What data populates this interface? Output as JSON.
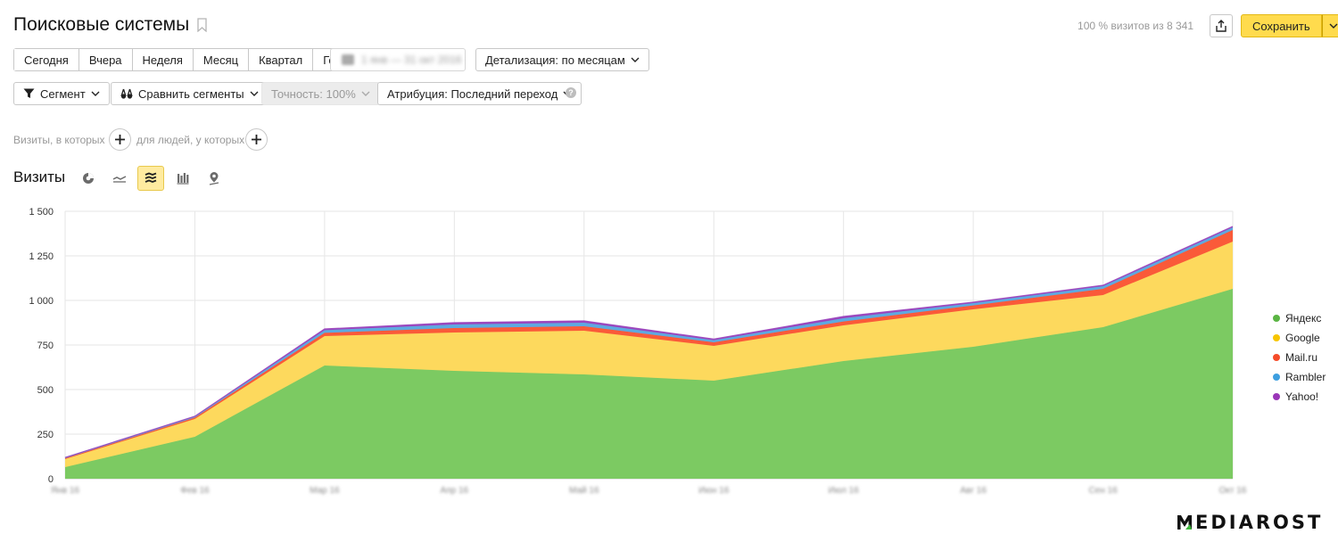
{
  "header": {
    "title": "Поисковые системы",
    "visits_info": "100 % визитов из 8 341",
    "save_label": "Сохранить"
  },
  "periods": [
    "Сегодня",
    "Вчера",
    "Неделя",
    "Месяц",
    "Квартал",
    "Год"
  ],
  "date_range": "1 янв — 31 окт 2016",
  "detail_label": "Детализация: по месяцам",
  "segment_label": "Сегмент",
  "compare_label": "Сравнить сегменты",
  "accuracy_label": "Точность: 100%",
  "attribution_label": "Атрибуция: Последний переход",
  "conditions": {
    "visits_text": "Визиты, в которых",
    "people_text": "для людей, у которых"
  },
  "chart_section_title": "Визиты",
  "chart_data": {
    "type": "area",
    "stacked": true,
    "categories": [
      "Янв 16",
      "Фев 16",
      "Мар 16",
      "Апр 16",
      "Май 16",
      "Июн 16",
      "Июл 16",
      "Авг 16",
      "Сен 16",
      "Окт 16"
    ],
    "series": [
      {
        "name": "Яндекс",
        "color": "#7cca62",
        "values": [
          65,
          235,
          635,
          605,
          585,
          550,
          660,
          740,
          850,
          1065
        ]
      },
      {
        "name": "Google",
        "color": "#fdd95d",
        "values": [
          45,
          100,
          165,
          215,
          245,
          195,
          200,
          210,
          180,
          265
        ]
      },
      {
        "name": "Mail.ru",
        "color": "#fa5a39",
        "values": [
          5,
          8,
          18,
          25,
          25,
          20,
          22,
          22,
          35,
          65
        ]
      },
      {
        "name": "Rambler",
        "color": "#5ea9e0",
        "values": [
          3,
          5,
          15,
          20,
          20,
          12,
          18,
          13,
          15,
          15
        ]
      },
      {
        "name": "Yahoo!",
        "color": "#9a45bd",
        "values": [
          1,
          2,
          7,
          10,
          10,
          6,
          10,
          5,
          5,
          5
        ]
      }
    ],
    "y_ticks": [
      "0",
      "250",
      "500",
      "750",
      "1 000",
      "1 250",
      "1 500"
    ],
    "ylim": [
      0,
      1500
    ],
    "grid": true,
    "legend": "right"
  }
}
